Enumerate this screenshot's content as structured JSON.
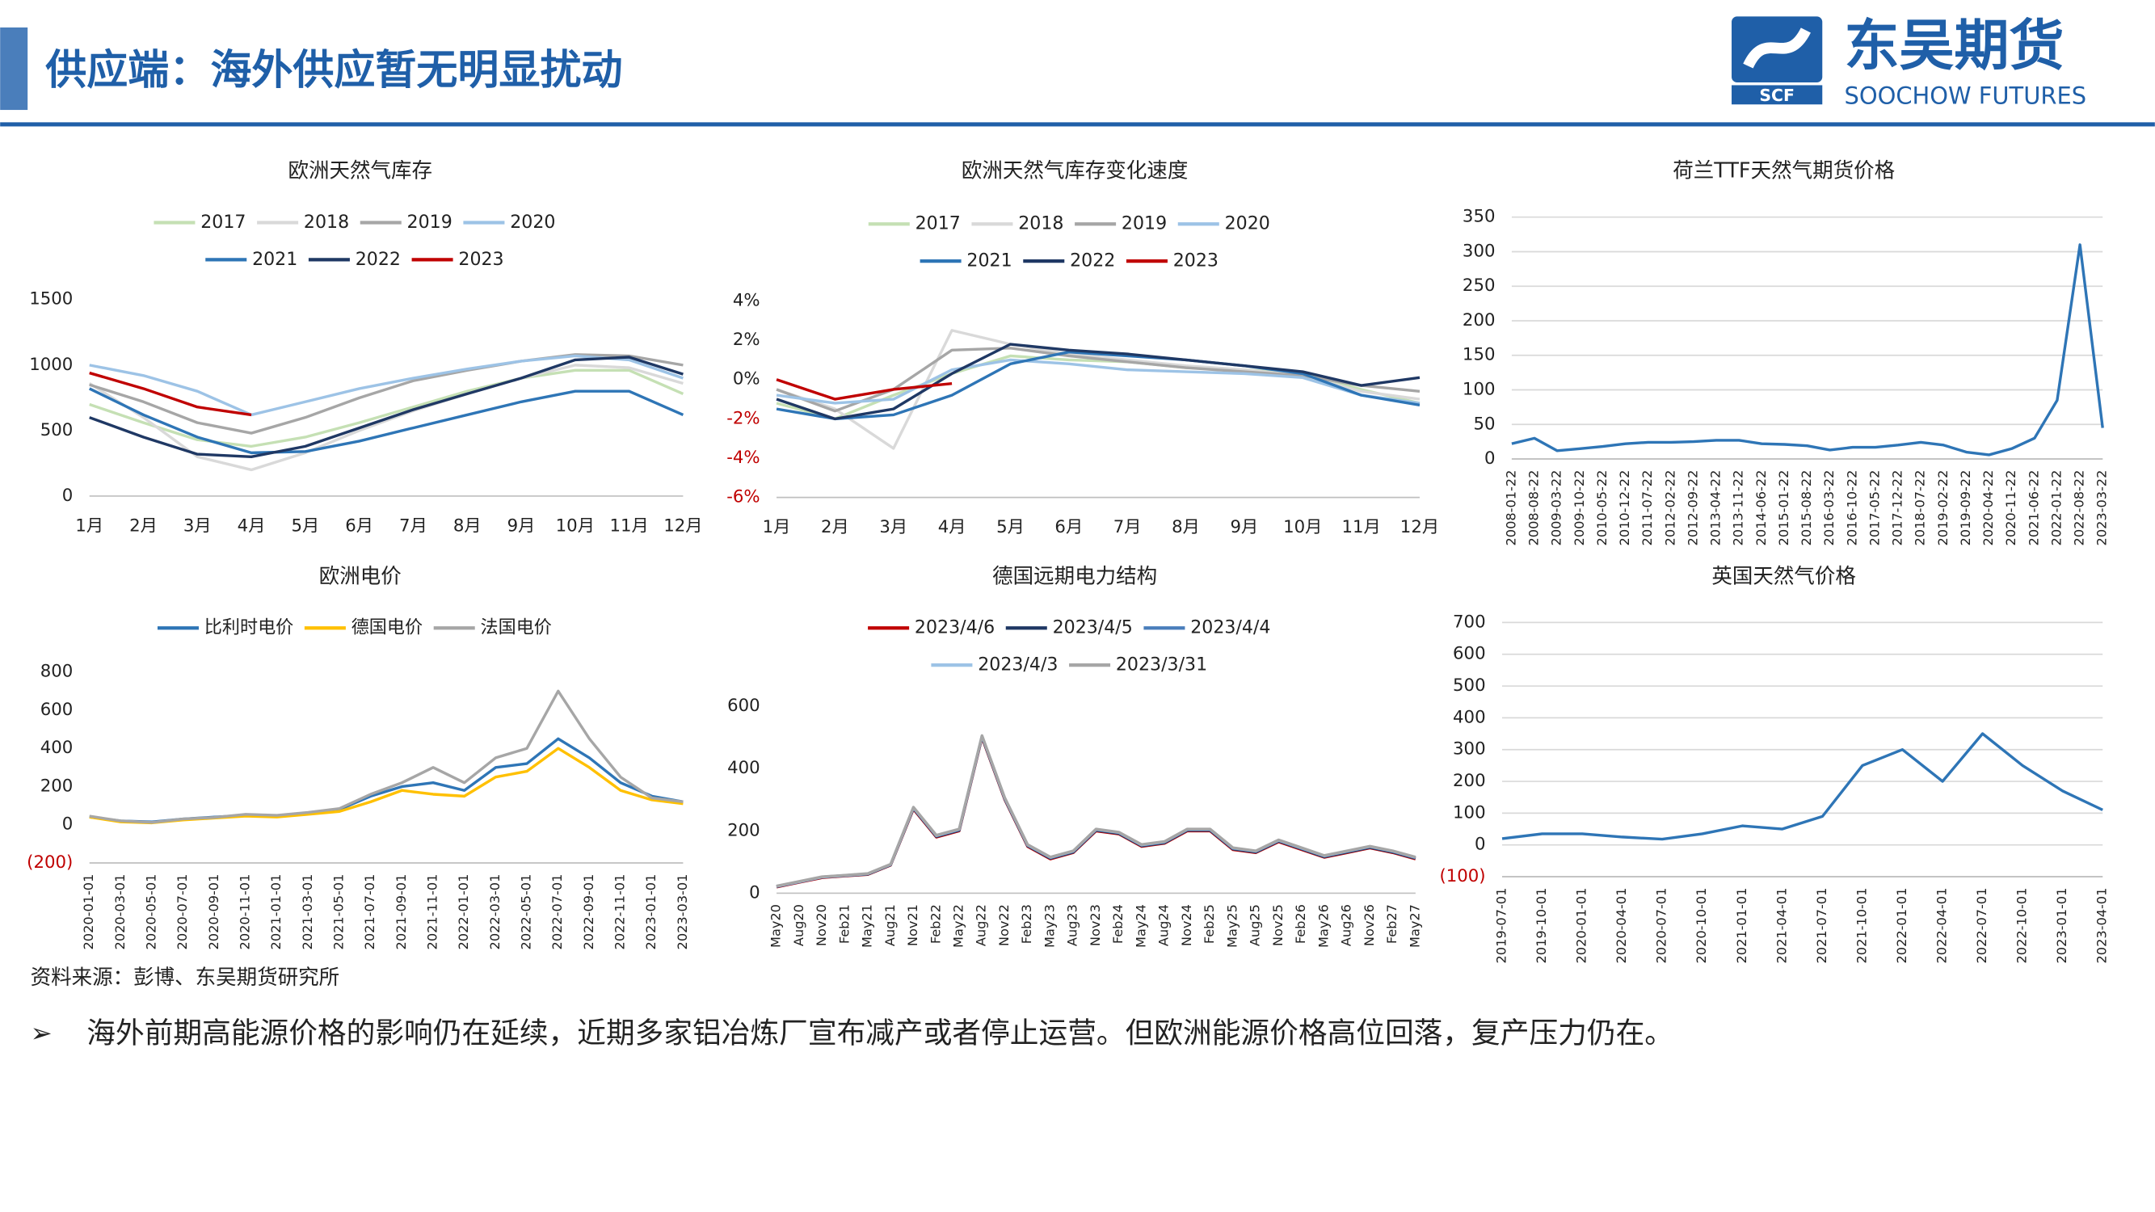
{
  "header": {
    "title": "供应端：海外供应暂无明显扰动",
    "logo_cn": "东吴期货",
    "logo_en": "SOOCHOW FUTURES",
    "logo_mark": "SCF"
  },
  "source": "资料来源：彭博、东吴期货研究所",
  "bullet": "海外前期高能源价格的影响仍在延续，近期多家铝冶炼厂宣布减产或者停止运营。但欧洲能源价格高位回落，复产压力仍在。",
  "chart_data": [
    {
      "type": "line",
      "title": "欧洲天然气库存",
      "grid": false,
      "legend": "top",
      "categories": [
        "1月",
        "2月",
        "3月",
        "4月",
        "5月",
        "6月",
        "7月",
        "8月",
        "9月",
        "10月",
        "11月",
        "12月"
      ],
      "ylim": [
        0,
        1500
      ],
      "yticks": [
        0,
        500,
        1000,
        1500
      ],
      "series": [
        {
          "name": "2017",
          "color": "#c5e0b4",
          "values": [
            700,
            560,
            430,
            380,
            450,
            560,
            680,
            800,
            900,
            960,
            960,
            780
          ]
        },
        {
          "name": "2018",
          "color": "#d9d9d9",
          "values": [
            860,
            600,
            300,
            200,
            330,
            500,
            650,
            780,
            900,
            1000,
            980,
            860
          ]
        },
        {
          "name": "2019",
          "color": "#a6a6a6",
          "values": [
            850,
            720,
            560,
            480,
            600,
            750,
            880,
            960,
            1030,
            1080,
            1070,
            1000
          ]
        },
        {
          "name": "2020",
          "color": "#9dc3e6",
          "values": [
            1000,
            920,
            800,
            620,
            720,
            820,
            900,
            970,
            1030,
            1070,
            1040,
            900
          ]
        },
        {
          "name": "2021",
          "color": "#2e75b6",
          "values": [
            820,
            620,
            450,
            330,
            340,
            420,
            520,
            620,
            720,
            800,
            800,
            620
          ]
        },
        {
          "name": "2022",
          "color": "#1f3864",
          "values": [
            600,
            450,
            320,
            300,
            380,
            520,
            660,
            780,
            900,
            1040,
            1060,
            930
          ]
        },
        {
          "name": "2023",
          "color": "#c00000",
          "values": [
            940,
            820,
            680,
            620,
            null,
            null,
            null,
            null,
            null,
            null,
            null,
            null
          ]
        }
      ]
    },
    {
      "type": "line",
      "title": "欧洲天然气库存变化速度",
      "grid": false,
      "legend": "top",
      "categories": [
        "1月",
        "2月",
        "3月",
        "4月",
        "5月",
        "6月",
        "7月",
        "8月",
        "9月",
        "10月",
        "11月",
        "12月"
      ],
      "ylim": [
        -6,
        4
      ],
      "yticks": [
        {
          "value": -6,
          "label": "-6%"
        },
        {
          "value": -4,
          "label": "-4%"
        },
        {
          "value": -2,
          "label": "-2%"
        },
        {
          "value": 0,
          "label": "0%"
        },
        {
          "value": 2,
          "label": "2%"
        },
        {
          "value": 4,
          "label": "4%"
        }
      ],
      "series": [
        {
          "name": "2017",
          "color": "#c5e0b4",
          "values": [
            -1.2,
            -2,
            -0.8,
            0.3,
            1.2,
            1,
            0.9,
            0.6,
            0.5,
            0.3,
            -0.5,
            -1.2
          ]
        },
        {
          "name": "2018",
          "color": "#d9d9d9",
          "values": [
            -0.5,
            -1.5,
            -3.5,
            2.5,
            1.8,
            1.3,
            1,
            0.7,
            0.5,
            0.2,
            -0.6,
            -1
          ]
        },
        {
          "name": "2019",
          "color": "#a6a6a6",
          "values": [
            -0.5,
            -1.6,
            -0.5,
            1.5,
            1.6,
            1.2,
            0.9,
            0.6,
            0.4,
            0.2,
            -0.3,
            -0.6
          ]
        },
        {
          "name": "2020",
          "color": "#9dc3e6",
          "values": [
            -0.8,
            -1.2,
            -1,
            0.5,
            1,
            0.8,
            0.5,
            0.4,
            0.3,
            0.1,
            -0.8,
            -1.2
          ]
        },
        {
          "name": "2021",
          "color": "#2e75b6",
          "values": [
            -1.5,
            -2,
            -1.8,
            -0.8,
            0.8,
            1.4,
            1.2,
            1,
            0.7,
            0.3,
            -0.8,
            -1.3
          ]
        },
        {
          "name": "2022",
          "color": "#1f3864",
          "values": [
            -1,
            -2,
            -1.5,
            0.3,
            1.8,
            1.5,
            1.3,
            1,
            0.7,
            0.4,
            -0.3,
            0.1
          ]
        },
        {
          "name": "2023",
          "color": "#c00000",
          "values": [
            0,
            -1,
            -0.5,
            -0.2,
            null,
            null,
            null,
            null,
            null,
            null,
            null,
            null
          ]
        }
      ]
    },
    {
      "type": "line",
      "title": "荷兰TTF天然气期货价格",
      "grid": true,
      "categories": [
        "2008-01-22",
        "2008-08-22",
        "2009-03-22",
        "2009-10-22",
        "2010-05-22",
        "2010-12-22",
        "2011-07-22",
        "2012-02-22",
        "2012-09-22",
        "2013-04-22",
        "2013-11-22",
        "2014-06-22",
        "2015-01-22",
        "2015-08-22",
        "2016-03-22",
        "2016-10-22",
        "2017-05-22",
        "2017-12-22",
        "2018-07-22",
        "2019-02-22",
        "2019-09-22",
        "2020-04-22",
        "2020-11-22",
        "2021-06-22",
        "2022-01-22",
        "2022-08-22",
        "2023-03-22"
      ],
      "ylim": [
        0,
        350
      ],
      "yticks": [
        0,
        50,
        100,
        150,
        200,
        250,
        300,
        350
      ],
      "color": "#2e75b6",
      "values": [
        22,
        30,
        12,
        15,
        18,
        22,
        24,
        24,
        25,
        27,
        27,
        22,
        21,
        19,
        13,
        17,
        17,
        20,
        24,
        20,
        10,
        6,
        15,
        30,
        85,
        310,
        45
      ]
    },
    {
      "type": "line",
      "title": "欧洲电价",
      "grid": false,
      "legend": "top",
      "categories": [
        "2020-01-01",
        "2020-03-01",
        "2020-05-01",
        "2020-07-01",
        "2020-09-01",
        "2020-11-01",
        "2021-01-01",
        "2021-03-01",
        "2021-05-01",
        "2021-07-01",
        "2021-09-01",
        "2021-11-01",
        "2022-01-01",
        "2022-03-01",
        "2022-05-01",
        "2022-07-01",
        "2022-09-01",
        "2022-11-01",
        "2023-01-01",
        "2023-03-01"
      ],
      "ylim": [
        -200,
        800
      ],
      "yticks": [
        {
          "value": -200,
          "label": "(200)"
        },
        0,
        200,
        400,
        600,
        800
      ],
      "series": [
        {
          "name": "比利时电价",
          "color": "#2e75b6",
          "values": [
            40,
            20,
            15,
            30,
            40,
            50,
            45,
            60,
            80,
            150,
            200,
            220,
            180,
            300,
            320,
            450,
            350,
            220,
            150,
            120
          ]
        },
        {
          "name": "德国电价",
          "color": "#ffc000",
          "values": [
            40,
            15,
            10,
            25,
            35,
            45,
            40,
            55,
            70,
            120,
            180,
            160,
            150,
            250,
            280,
            400,
            300,
            180,
            130,
            110
          ]
        },
        {
          "name": "法国电价",
          "color": "#a6a6a6",
          "values": [
            45,
            20,
            12,
            30,
            38,
            55,
            50,
            65,
            85,
            160,
            220,
            300,
            220,
            350,
            400,
            700,
            450,
            250,
            140,
            120
          ]
        }
      ]
    },
    {
      "type": "line",
      "title": "德国远期电力结构",
      "grid": false,
      "legend": "top",
      "categories": [
        "May20",
        "Aug20",
        "Nov20",
        "Feb21",
        "May21",
        "Aug21",
        "Nov21",
        "Feb22",
        "May22",
        "Aug22",
        "Nov22",
        "Feb23",
        "May23",
        "Aug23",
        "Nov23",
        "Feb24",
        "May24",
        "Aug24",
        "Nov24",
        "Feb25",
        "May25",
        "Aug25",
        "Nov25",
        "Feb26",
        "May26",
        "Aug26",
        "Nov26",
        "Feb27",
        "May27"
      ],
      "ylim": [
        0,
        600
      ],
      "yticks": [
        0,
        200,
        400,
        600
      ],
      "series": [
        {
          "name": "2023/4/6",
          "color": "#c00000",
          "values": [
            20,
            35,
            50,
            55,
            60,
            90,
            270,
            180,
            200,
            500,
            300,
            150,
            110,
            130,
            200,
            190,
            150,
            160,
            200,
            200,
            140,
            130,
            165,
            140,
            115,
            130,
            145,
            130,
            110
          ]
        },
        {
          "name": "2023/4/5",
          "color": "#1f3864",
          "values": [
            21,
            36,
            51,
            56,
            61,
            91,
            272,
            182,
            202,
            502,
            302,
            152,
            112,
            132,
            202,
            192,
            152,
            162,
            202,
            202,
            142,
            132,
            167,
            142,
            117,
            132,
            147,
            132,
            112
          ]
        },
        {
          "name": "2023/4/4",
          "color": "#4a7ebb",
          "values": [
            22,
            36,
            52,
            57,
            62,
            92,
            274,
            184,
            204,
            504,
            304,
            154,
            114,
            134,
            204,
            194,
            154,
            164,
            204,
            204,
            144,
            134,
            169,
            144,
            119,
            134,
            149,
            134,
            114
          ]
        },
        {
          "name": "2023/4/3",
          "color": "#9dc3e6",
          "values": [
            22,
            37,
            52,
            57,
            62,
            92,
            275,
            185,
            205,
            505,
            305,
            155,
            115,
            135,
            205,
            195,
            155,
            165,
            205,
            205,
            145,
            135,
            170,
            145,
            120,
            135,
            150,
            135,
            115
          ]
        },
        {
          "name": "2023/3/31",
          "color": "#a6a6a6",
          "values": [
            23,
            38,
            53,
            58,
            63,
            93,
            276,
            186,
            206,
            506,
            306,
            156,
            116,
            136,
            206,
            196,
            156,
            166,
            206,
            206,
            146,
            136,
            171,
            146,
            121,
            136,
            151,
            136,
            116
          ]
        }
      ]
    },
    {
      "type": "line",
      "title": "英国天然气价格",
      "grid": true,
      "categories": [
        "2019-07-01",
        "2019-10-01",
        "2020-01-01",
        "2020-04-01",
        "2020-07-01",
        "2020-10-01",
        "2021-01-01",
        "2021-04-01",
        "2021-07-01",
        "2021-10-01",
        "2022-01-01",
        "2022-04-01",
        "2022-07-01",
        "2022-10-01",
        "2023-01-01",
        "2023-04-01"
      ],
      "ylim": [
        -100,
        700
      ],
      "yticks": [
        {
          "value": -100,
          "label": "(100)"
        },
        0,
        100,
        200,
        300,
        400,
        500,
        600,
        700
      ],
      "color": "#2e75b6",
      "values": [
        20,
        35,
        35,
        25,
        18,
        35,
        60,
        50,
        90,
        250,
        300,
        200,
        350,
        250,
        170,
        110
      ]
    }
  ]
}
